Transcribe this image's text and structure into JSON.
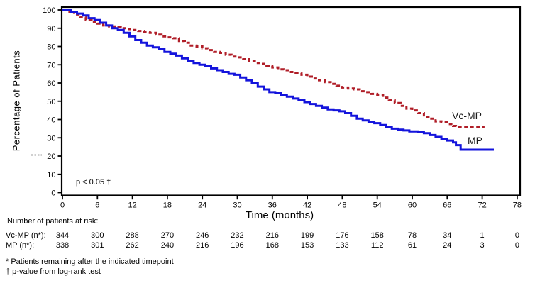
{
  "colors": {
    "vcmp_line": "#B01E28",
    "mp_line": "#1414DC",
    "frame": "#000000",
    "background": "#FFFFFF"
  },
  "chart_data": {
    "type": "line",
    "subtype": "kaplan-meier-step",
    "title": "",
    "xlabel": "Time (months)",
    "ylabel": "Percentage of Patients",
    "xlim": [
      0,
      78
    ],
    "ylim": [
      0,
      100
    ],
    "x_ticks": [
      0,
      6,
      12,
      18,
      24,
      30,
      36,
      42,
      48,
      54,
      60,
      66,
      72,
      78
    ],
    "y_ticks": [
      0,
      10,
      20,
      30,
      40,
      50,
      60,
      70,
      80,
      90,
      100
    ],
    "grid": false,
    "legend_position": "labels-at-line-end",
    "annotations": [
      {
        "text": "p < 0.05 †",
        "x_month": 2.3,
        "y_pct": 5
      }
    ],
    "series": [
      {
        "name": "Vc-MP",
        "color": "#B01E28",
        "line_style": "dashed",
        "line_width": 3,
        "points": [
          [
            0,
            100
          ],
          [
            1.2,
            99
          ],
          [
            2,
            97.5
          ],
          [
            3,
            96
          ],
          [
            4,
            94.5
          ],
          [
            5,
            93.5
          ],
          [
            6,
            92.5
          ],
          [
            7,
            91.5
          ],
          [
            8,
            91
          ],
          [
            9,
            90.5
          ],
          [
            10,
            90
          ],
          [
            11,
            89.5
          ],
          [
            12,
            89
          ],
          [
            13,
            88.5
          ],
          [
            14,
            88
          ],
          [
            15,
            87.5
          ],
          [
            16,
            86.5
          ],
          [
            17,
            85.5
          ],
          [
            18,
            85
          ],
          [
            19,
            84.5
          ],
          [
            20,
            83
          ],
          [
            21,
            82
          ],
          [
            22,
            80.5
          ],
          [
            23,
            80
          ],
          [
            24,
            79
          ],
          [
            25,
            78
          ],
          [
            26,
            77
          ],
          [
            27,
            76.5
          ],
          [
            28,
            75.5
          ],
          [
            29,
            74.5
          ],
          [
            30,
            74
          ],
          [
            31,
            73
          ],
          [
            32,
            72
          ],
          [
            33,
            71
          ],
          [
            34,
            70.5
          ],
          [
            35,
            69.5
          ],
          [
            36,
            68.5
          ],
          [
            37,
            67.5
          ],
          [
            38,
            67
          ],
          [
            39,
            66
          ],
          [
            40,
            65.5
          ],
          [
            41,
            64.5
          ],
          [
            42,
            63.5
          ],
          [
            43,
            62.5
          ],
          [
            44,
            61.5
          ],
          [
            45,
            60.5
          ],
          [
            46,
            59.5
          ],
          [
            47,
            58.5
          ],
          [
            48,
            57.5
          ],
          [
            49,
            57
          ],
          [
            50,
            56.5
          ],
          [
            51,
            55.5
          ],
          [
            52,
            55
          ],
          [
            53,
            54
          ],
          [
            54,
            53.5
          ],
          [
            55,
            52
          ],
          [
            56,
            50.5
          ],
          [
            57,
            49
          ],
          [
            58,
            47.5
          ],
          [
            59,
            46
          ],
          [
            60,
            45
          ],
          [
            61,
            43.5
          ],
          [
            62,
            41.5
          ],
          [
            63,
            40.5
          ],
          [
            64,
            39
          ],
          [
            65,
            38.5
          ],
          [
            66,
            37.5
          ],
          [
            67,
            36.5
          ],
          [
            67.5,
            36
          ],
          [
            72.4,
            36
          ]
        ]
      },
      {
        "name": "MP",
        "color": "#1414DC",
        "line_style": "solid",
        "line_width": 3,
        "points": [
          [
            0,
            100
          ],
          [
            1.5,
            99
          ],
          [
            2.5,
            98
          ],
          [
            3.5,
            97
          ],
          [
            4.5,
            95.5
          ],
          [
            5.5,
            94.5
          ],
          [
            6.5,
            93
          ],
          [
            7.5,
            91.5
          ],
          [
            8.5,
            90
          ],
          [
            9.5,
            89
          ],
          [
            10.5,
            87.5
          ],
          [
            11.5,
            85.5
          ],
          [
            12.5,
            83.5
          ],
          [
            13.5,
            82
          ],
          [
            14.5,
            80.5
          ],
          [
            15.5,
            79.5
          ],
          [
            16.5,
            78.5
          ],
          [
            17.5,
            77
          ],
          [
            18.5,
            76
          ],
          [
            19.5,
            75
          ],
          [
            20.5,
            73.5
          ],
          [
            21.5,
            72
          ],
          [
            22.5,
            71
          ],
          [
            23.5,
            70
          ],
          [
            24.5,
            69.5
          ],
          [
            25.5,
            68
          ],
          [
            26.5,
            67
          ],
          [
            27.5,
            66
          ],
          [
            28.5,
            65
          ],
          [
            29.5,
            64.5
          ],
          [
            30.5,
            63
          ],
          [
            31.5,
            61.5
          ],
          [
            32.5,
            60
          ],
          [
            33.5,
            58
          ],
          [
            34.5,
            56.5
          ],
          [
            35.5,
            55
          ],
          [
            36.5,
            54.5
          ],
          [
            37.5,
            53.5
          ],
          [
            38.5,
            52.5
          ],
          [
            39.5,
            51.5
          ],
          [
            40.5,
            50.5
          ],
          [
            41.5,
            49.5
          ],
          [
            42.5,
            48.5
          ],
          [
            43.5,
            47.5
          ],
          [
            44.5,
            46.5
          ],
          [
            45.5,
            45.5
          ],
          [
            46.5,
            45
          ],
          [
            47.5,
            44.5
          ],
          [
            48.5,
            43.5
          ],
          [
            49.5,
            42
          ],
          [
            50.5,
            40.5
          ],
          [
            51.5,
            39.5
          ],
          [
            52.5,
            38.5
          ],
          [
            53.5,
            38
          ],
          [
            54.5,
            37
          ],
          [
            55.5,
            36
          ],
          [
            56.5,
            35
          ],
          [
            57.5,
            34.5
          ],
          [
            58.5,
            34
          ],
          [
            59.5,
            33.5
          ],
          [
            61,
            33
          ],
          [
            62,
            32.5
          ],
          [
            63,
            31.5
          ],
          [
            64,
            30.5
          ],
          [
            65,
            29.5
          ],
          [
            66,
            28.5
          ],
          [
            67,
            27.5
          ],
          [
            67.5,
            26
          ],
          [
            68.3,
            23.5
          ],
          [
            74,
            23.5
          ]
        ]
      }
    ]
  },
  "risk_table": {
    "title": "Number of patients at risk:",
    "time_points": [
      0,
      6,
      12,
      18,
      24,
      30,
      36,
      42,
      48,
      54,
      60,
      66,
      72,
      78
    ],
    "rows": [
      {
        "label": "Vc-MP (n*):",
        "values": [
          344,
          300,
          288,
          270,
          246,
          232,
          216,
          199,
          176,
          158,
          78,
          34,
          1,
          0
        ]
      },
      {
        "label": "MP (n*):",
        "values": [
          338,
          301,
          262,
          240,
          216,
          196,
          168,
          153,
          133,
          112,
          61,
          24,
          3,
          0
        ]
      }
    ]
  },
  "footnotes": [
    "* Patients remaining after the indicated timepoint",
    "† p-value from log-rank test"
  ]
}
